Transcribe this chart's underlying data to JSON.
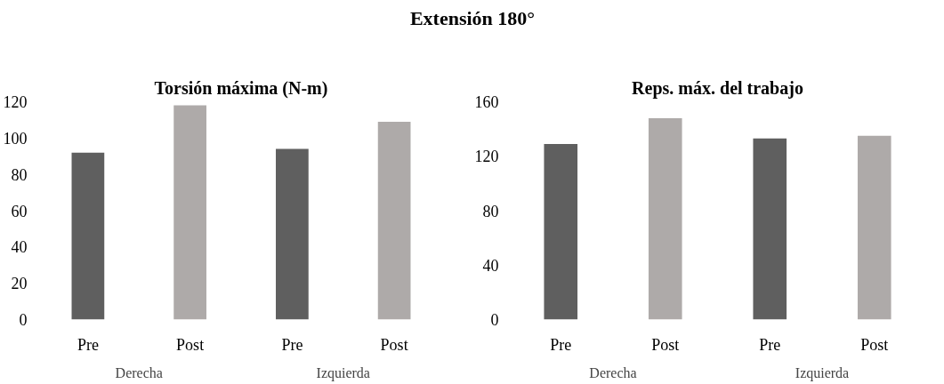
{
  "chart_data": [
    {
      "type": "other",
      "title": "Extensión 180°"
    },
    {
      "type": "bar",
      "title": "Torsión máxima (N-m)",
      "categories": [
        "Pre",
        "Post",
        "Pre",
        "Post"
      ],
      "values": [
        92,
        118,
        94,
        109
      ],
      "colors": [
        "#5f5f5f",
        "#aeaaa9",
        "#5f5f5f",
        "#aeaaa9"
      ],
      "ylim": [
        0,
        120
      ],
      "yticks": [
        0,
        20,
        40,
        60,
        80,
        100,
        120
      ],
      "grid": false,
      "annotations": [
        "Derecha",
        "Izquierda"
      ]
    },
    {
      "type": "bar",
      "title": "Reps. máx. del trabajo",
      "categories": [
        "Pre",
        "Post",
        "Pre",
        "Post"
      ],
      "values": [
        129,
        148,
        133,
        135
      ],
      "colors": [
        "#5f5f5f",
        "#aeaaa9",
        "#5f5f5f",
        "#aeaaa9"
      ],
      "ylim": [
        0,
        160
      ],
      "yticks": [
        0,
        40,
        80,
        120,
        160
      ],
      "grid": false,
      "annotations": [
        "Derecha",
        "Izquierda"
      ]
    }
  ]
}
